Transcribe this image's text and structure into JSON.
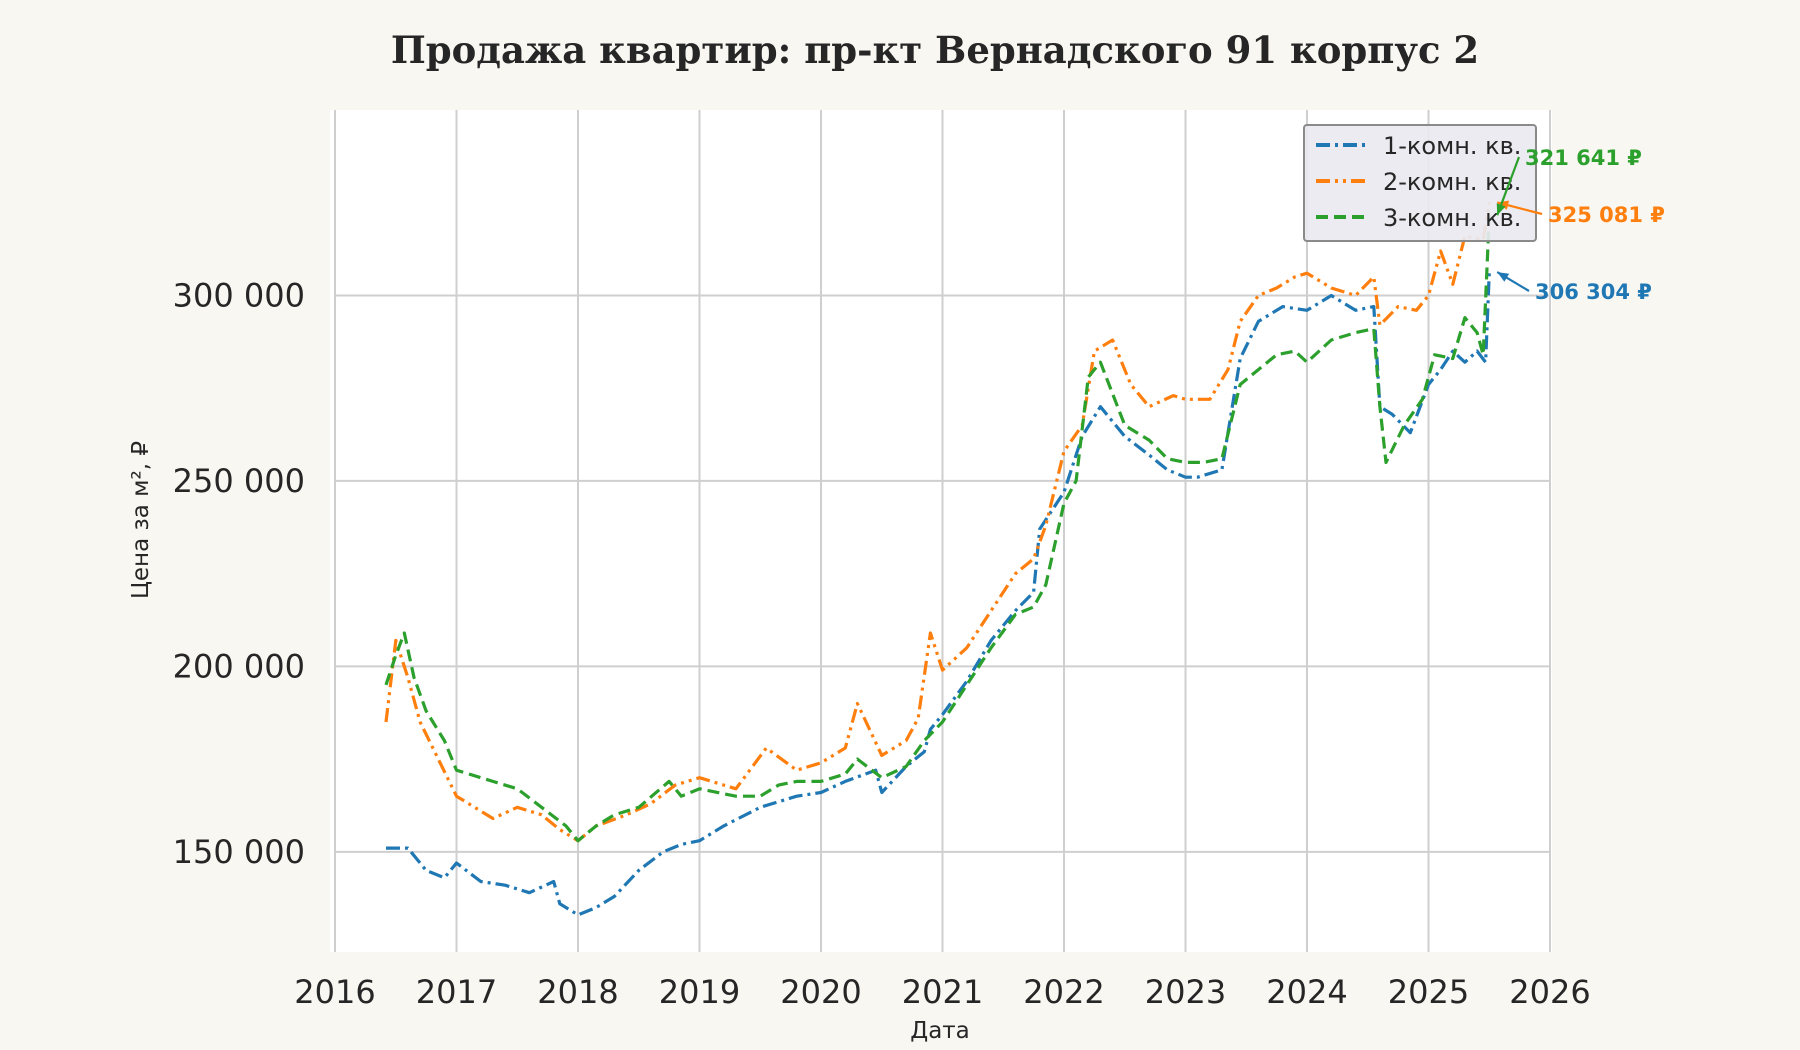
{
  "chart_data": {
    "type": "line",
    "title": "Продажа квартир: пр-кт Вернадского 91 корпус 2",
    "xlabel": "Дата",
    "ylabel": "Цена за м², ₽",
    "xlim": [
      2016.0,
      2026.0
    ],
    "ylim": [
      123000,
      350000
    ],
    "x_ticks": [
      2016,
      2017,
      2018,
      2019,
      2020,
      2021,
      2022,
      2023,
      2024,
      2025,
      2026
    ],
    "x_tick_labels": [
      "2016",
      "2017",
      "2018",
      "2019",
      "2020",
      "2021",
      "2022",
      "2023",
      "2024",
      "2025",
      "2026"
    ],
    "y_ticks": [
      150000,
      200000,
      250000,
      300000
    ],
    "y_tick_labels": [
      "150 000",
      "200 000",
      "250 000",
      "300 000"
    ],
    "grid": true,
    "legend_position": "top-right",
    "series": [
      {
        "name": "1-комн. кв.",
        "color": "#1f77b4",
        "dash": "dash-dot",
        "x": [
          2016.42,
          2016.6,
          2016.75,
          2016.9,
          2017.0,
          2017.2,
          2017.4,
          2017.6,
          2017.8,
          2017.85,
          2018.0,
          2018.15,
          2018.3,
          2018.5,
          2018.7,
          2018.85,
          2019.0,
          2019.2,
          2019.5,
          2019.8,
          2020.0,
          2020.2,
          2020.45,
          2020.5,
          2020.7,
          2020.85,
          2020.9,
          2021.0,
          2021.2,
          2021.4,
          2021.6,
          2021.75,
          2021.8,
          2022.0,
          2022.15,
          2022.3,
          2022.5,
          2022.7,
          2022.85,
          2023.0,
          2023.1,
          2023.3,
          2023.45,
          2023.6,
          2023.8,
          2024.0,
          2024.2,
          2024.4,
          2024.55,
          2024.6,
          2024.7,
          2024.85,
          2025.0,
          2025.1,
          2025.2,
          2025.3,
          2025.4,
          2025.47,
          2025.5
        ],
        "y": [
          151000,
          151000,
          145000,
          143000,
          147000,
          142000,
          141000,
          139000,
          142000,
          136000,
          133000,
          135000,
          138000,
          145000,
          150000,
          152000,
          153000,
          157000,
          162000,
          165000,
          166000,
          169000,
          172000,
          166000,
          173000,
          177000,
          183000,
          187000,
          196000,
          207000,
          215000,
          220000,
          237000,
          247000,
          262000,
          270000,
          262000,
          257000,
          253000,
          251000,
          251000,
          253000,
          283000,
          293000,
          297000,
          296000,
          300000,
          296000,
          297000,
          270000,
          268000,
          263000,
          276000,
          280000,
          285000,
          282000,
          285000,
          282000,
          306304
        ]
      },
      {
        "name": "2-комн. кв.",
        "color": "#ff7f0e",
        "dash": "dash-dot-dot",
        "x": [
          2016.42,
          2016.5,
          2016.6,
          2016.7,
          2016.85,
          2017.0,
          2017.3,
          2017.5,
          2017.7,
          2017.85,
          2018.0,
          2018.15,
          2018.4,
          2018.6,
          2018.8,
          2019.0,
          2019.3,
          2019.55,
          2019.8,
          2020.0,
          2020.2,
          2020.3,
          2020.5,
          2020.7,
          2020.8,
          2020.9,
          2021.0,
          2021.2,
          2021.4,
          2021.6,
          2021.75,
          2021.85,
          2022.0,
          2022.15,
          2022.25,
          2022.4,
          2022.55,
          2022.7,
          2022.9,
          2023.0,
          2023.2,
          2023.35,
          2023.45,
          2023.6,
          2023.75,
          2023.9,
          2024.0,
          2024.2,
          2024.4,
          2024.55,
          2024.6,
          2024.75,
          2024.9,
          2025.0,
          2025.1,
          2025.2,
          2025.3,
          2025.45,
          2025.5
        ],
        "y": [
          185000,
          207000,
          197000,
          185000,
          175000,
          165000,
          159000,
          162000,
          160000,
          156000,
          153000,
          157000,
          160000,
          163000,
          168000,
          170000,
          167000,
          178000,
          172000,
          174000,
          178000,
          190000,
          176000,
          180000,
          186000,
          209000,
          199000,
          205000,
          215000,
          225000,
          229000,
          238000,
          258000,
          265000,
          285000,
          288000,
          276000,
          270000,
          273000,
          272000,
          272000,
          280000,
          293000,
          300000,
          302000,
          305000,
          306000,
          302000,
          300000,
          305000,
          292000,
          297000,
          296000,
          300000,
          312000,
          303000,
          316000,
          315000,
          325081
        ]
      },
      {
        "name": "3-комн. кв.",
        "color": "#2ca02c",
        "dash": "dashed",
        "x": [
          2016.42,
          2016.5,
          2016.57,
          2016.65,
          2016.75,
          2016.9,
          2017.0,
          2017.3,
          2017.5,
          2017.7,
          2017.9,
          2018.0,
          2018.15,
          2018.3,
          2018.5,
          2018.75,
          2018.85,
          2019.0,
          2019.3,
          2019.5,
          2019.65,
          2019.8,
          2020.0,
          2020.2,
          2020.3,
          2020.5,
          2020.7,
          2020.85,
          2021.0,
          2021.2,
          2021.4,
          2021.6,
          2021.75,
          2021.85,
          2022.0,
          2022.1,
          2022.2,
          2022.3,
          2022.5,
          2022.7,
          2022.85,
          2023.0,
          2023.15,
          2023.3,
          2023.45,
          2023.6,
          2023.75,
          2023.9,
          2024.0,
          2024.2,
          2024.4,
          2024.55,
          2024.6,
          2024.65,
          2024.8,
          2024.95,
          2025.05,
          2025.2,
          2025.3,
          2025.4,
          2025.45,
          2025.5
        ],
        "y": [
          195000,
          203000,
          209000,
          197000,
          188000,
          180000,
          172000,
          169000,
          167000,
          162000,
          157000,
          153000,
          157000,
          160000,
          162000,
          169000,
          165000,
          167000,
          165000,
          165000,
          168000,
          169000,
          169000,
          171000,
          175000,
          170000,
          173000,
          180000,
          185000,
          195000,
          205000,
          214000,
          216000,
          222000,
          244000,
          250000,
          278000,
          282000,
          265000,
          261000,
          256000,
          255000,
          255000,
          256000,
          276000,
          280000,
          284000,
          285000,
          282000,
          288000,
          290000,
          291000,
          270000,
          255000,
          265000,
          272000,
          284000,
          283000,
          294000,
          290000,
          284000,
          321641
        ]
      }
    ],
    "annotations": [
      {
        "label": "306 304 ₽",
        "series": "1-комн. кв.",
        "x": 2025.5,
        "y": 306304,
        "color": "#1f77b4"
      },
      {
        "label": "325 081 ₽",
        "series": "2-комн. кв.",
        "x": 2025.5,
        "y": 325081,
        "color": "#ff7f0e"
      },
      {
        "label": "321 641 ₽",
        "series": "3-комн. кв.",
        "x": 2025.5,
        "y": 321641,
        "color": "#2ca02c"
      }
    ]
  }
}
